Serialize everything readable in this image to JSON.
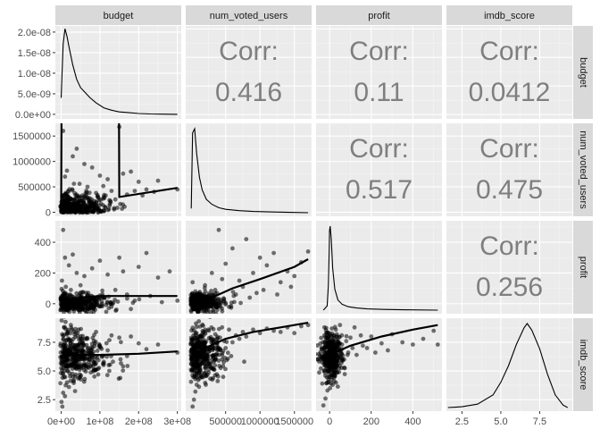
{
  "chart_data": {
    "type": "scatter",
    "variables": [
      "budget",
      "num_voted_users",
      "profit",
      "imdb_score"
    ],
    "corr_label": "Corr:",
    "correlations": {
      "budget|num_voted_users": "0.416",
      "budget|profit": "0.11",
      "budget|imdb_score": "0.0412",
      "num_voted_users|profit": "0.517",
      "num_voted_users|imdb_score": "0.475",
      "profit|imdb_score": "0.256"
    },
    "x_ticks": {
      "budget": [
        "0e+00",
        "1e+08",
        "2e+08",
        "3e+08"
      ],
      "num_voted_users": [
        "500000",
        "1000000",
        "1500000"
      ],
      "profit": [
        "0",
        "200",
        "400"
      ],
      "imdb_score": [
        "2.5",
        "5.0",
        "7.5"
      ]
    },
    "y_ticks": {
      "budget_density": [
        "0.0e+00",
        "5.0e-09",
        "1.0e-08",
        "1.5e-08",
        "2.0e-08"
      ],
      "num_voted_users": [
        "0",
        "500000",
        "1000000",
        "1500000"
      ],
      "profit": [
        "0",
        "200",
        "400"
      ],
      "imdb_score": [
        "2.5",
        "5.0",
        "7.5"
      ]
    },
    "axis_ranges": {
      "budget": [
        -15000000,
        310000000
      ],
      "num_voted_users": [
        -80000,
        1750000
      ],
      "profit": [
        -65,
        540
      ],
      "imdb_score": [
        1.5,
        9.6
      ],
      "budget_density": [
        -1.1e-09,
        2.15e-08
      ]
    },
    "densities": {
      "budget": [
        [
          0,
          4e-09
        ],
        [
          5000000,
          1.7e-08
        ],
        [
          10000000,
          2.08e-08
        ],
        [
          15000000,
          1.9e-08
        ],
        [
          20000000,
          1.65e-08
        ],
        [
          30000000,
          1.2e-08
        ],
        [
          40000000,
          8.5e-09
        ],
        [
          50000000,
          6.5e-09
        ],
        [
          60000000,
          5.5e-09
        ],
        [
          75000000,
          4e-09
        ],
        [
          90000000,
          2.8e-09
        ],
        [
          110000000,
          1.6e-09
        ],
        [
          130000000,
          1e-09
        ],
        [
          150000000,
          6e-10
        ],
        [
          175000000,
          4e-10
        ],
        [
          200000000,
          2e-10
        ],
        [
          230000000,
          1e-10
        ],
        [
          260000000,
          5e-11
        ],
        [
          300000000,
          0.0
        ]
      ],
      "num_voted_users": [
        [
          0,
          0.05
        ],
        [
          20000,
          0.95
        ],
        [
          50000,
          1.0
        ],
        [
          80000,
          0.7
        ],
        [
          120000,
          0.42
        ],
        [
          160000,
          0.27
        ],
        [
          220000,
          0.16
        ],
        [
          300000,
          0.1
        ],
        [
          400000,
          0.06
        ],
        [
          500000,
          0.04
        ],
        [
          700000,
          0.025
        ],
        [
          900000,
          0.015
        ],
        [
          1200000,
          0.008
        ],
        [
          1500000,
          0.003
        ],
        [
          1700000,
          0.0
        ]
      ],
      "profit": [
        [
          -30,
          0.0
        ],
        [
          -12,
          0.05
        ],
        [
          -6,
          0.3
        ],
        [
          -2,
          0.7
        ],
        [
          0,
          0.95
        ],
        [
          3,
          1.0
        ],
        [
          8,
          0.85
        ],
        [
          15,
          0.5
        ],
        [
          25,
          0.25
        ],
        [
          40,
          0.12
        ],
        [
          60,
          0.07
        ],
        [
          90,
          0.04
        ],
        [
          130,
          0.025
        ],
        [
          180,
          0.015
        ],
        [
          260,
          0.008
        ],
        [
          350,
          0.004
        ],
        [
          520,
          0.0
        ]
      ],
      "imdb_score": [
        [
          1.6,
          0.0
        ],
        [
          2.5,
          0.01
        ],
        [
          3.5,
          0.04
        ],
        [
          4.5,
          0.15
        ],
        [
          5.0,
          0.3
        ],
        [
          5.5,
          0.5
        ],
        [
          6.0,
          0.75
        ],
        [
          6.5,
          0.95
        ],
        [
          6.7,
          1.0
        ],
        [
          7.0,
          0.92
        ],
        [
          7.5,
          0.7
        ],
        [
          8.0,
          0.4
        ],
        [
          8.5,
          0.15
        ],
        [
          9.0,
          0.03
        ],
        [
          9.3,
          0.0
        ]
      ]
    },
    "trend_lines": {
      "num_voted_users~budget": [
        [
          0,
          80000
        ],
        [
          80000000,
          150000000
        ],
        [
          150000000,
          300000
        ],
        [
          300000000,
          480000
        ]
      ],
      "profit~budget": [
        [
          0,
          20
        ],
        [
          50000000,
          40
        ],
        [
          100000000,
          50
        ],
        [
          200000000,
          50
        ],
        [
          300000000,
          50
        ]
      ],
      "imdb_score~budget": [
        [
          0,
          6.6
        ],
        [
          50000000,
          6.4
        ],
        [
          100000000,
          6.4
        ],
        [
          200000000,
          6.5
        ],
        [
          300000000,
          6.7
        ]
      ],
      "profit~num_voted_users": [
        [
          0,
          5
        ],
        [
          300000,
          40
        ],
        [
          600000,
          100
        ],
        [
          1000000,
          160
        ],
        [
          1500000,
          240
        ],
        [
          1700000,
          290
        ]
      ],
      "imdb_score~num_voted_users": [
        [
          0,
          5.9
        ],
        [
          200000,
          7.0
        ],
        [
          500000,
          7.8
        ],
        [
          900000,
          8.4
        ],
        [
          1300000,
          8.8
        ],
        [
          1700000,
          9.2
        ]
      ],
      "imdb_score~profit": [
        [
          -20,
          6.3
        ],
        [
          0,
          6.4
        ],
        [
          100,
          7.2
        ],
        [
          250,
          8.0
        ],
        [
          400,
          8.6
        ],
        [
          520,
          9.0
        ]
      ]
    },
    "scatter_points": {
      "budget_num_voted_users": [
        [
          5000000,
          1600000
        ],
        [
          10000000,
          700000
        ],
        [
          15000000,
          820000
        ],
        [
          30000000,
          1100000
        ],
        [
          40000000,
          1250000
        ],
        [
          60000000,
          950000
        ],
        [
          80000000,
          880000
        ],
        [
          100000000,
          720000
        ],
        [
          120000000,
          650000
        ],
        [
          150000000,
          1680000
        ],
        [
          160000000,
          760000
        ],
        [
          180000000,
          800000
        ],
        [
          200000000,
          600000
        ],
        [
          220000000,
          450000
        ],
        [
          250000000,
          620000
        ],
        [
          300000000,
          450000
        ],
        [
          3000000,
          40000
        ],
        [
          8000000,
          90000
        ],
        [
          12000000,
          150000
        ],
        [
          18000000,
          210000
        ],
        [
          25000000,
          110000
        ],
        [
          35000000,
          260000
        ],
        [
          45000000,
          190000
        ],
        [
          55000000,
          330000
        ],
        [
          70000000,
          270000
        ],
        [
          90000000,
          380000
        ],
        [
          110000000,
          300000
        ],
        [
          130000000,
          420000
        ],
        [
          140000000,
          250000
        ],
        [
          170000000,
          350000
        ],
        [
          190000000,
          420000
        ],
        [
          210000000,
          330000
        ],
        [
          240000000,
          400000
        ],
        [
          2000000,
          20000
        ],
        [
          6000000,
          60000
        ],
        [
          20000000,
          75000
        ],
        [
          28000000,
          45000
        ],
        [
          50000000,
          140000
        ],
        [
          65000000,
          95000
        ],
        [
          85000000,
          170000
        ],
        [
          95000000,
          60000
        ],
        [
          125000000,
          130000
        ]
      ],
      "budget_profit": [
        [
          5000000,
          480
        ],
        [
          10000000,
          300
        ],
        [
          20000000,
          250
        ],
        [
          30000000,
          320
        ],
        [
          40000000,
          200
        ],
        [
          60000000,
          180
        ],
        [
          80000000,
          230
        ],
        [
          100000000,
          280
        ],
        [
          120000000,
          190
        ],
        [
          150000000,
          300
        ],
        [
          160000000,
          210
        ],
        [
          200000000,
          240
        ],
        [
          220000000,
          330
        ],
        [
          250000000,
          170
        ],
        [
          280000000,
          210
        ],
        [
          300000000,
          20
        ],
        [
          3000000,
          -20
        ],
        [
          8000000,
          10
        ],
        [
          15000000,
          60
        ],
        [
          25000000,
          90
        ],
        [
          35000000,
          30
        ],
        [
          50000000,
          120
        ],
        [
          70000000,
          70
        ],
        [
          90000000,
          -10
        ],
        [
          110000000,
          40
        ],
        [
          140000000,
          90
        ],
        [
          170000000,
          60
        ],
        [
          190000000,
          20
        ],
        [
          230000000,
          50
        ],
        [
          260000000,
          10
        ],
        [
          2000000,
          150
        ],
        [
          12000000,
          110
        ],
        [
          45000000,
          -40
        ],
        [
          75000000,
          -30
        ],
        [
          130000000,
          -20
        ],
        [
          180000000,
          -35
        ]
      ],
      "budget_imdb_score": [
        [
          1000000,
          2.3
        ],
        [
          3000000,
          1.9
        ],
        [
          5000000,
          3.1
        ],
        [
          10000000,
          2.8
        ],
        [
          15000000,
          4.0
        ],
        [
          20000000,
          3.6
        ],
        [
          30000000,
          4.5
        ],
        [
          40000000,
          5.2
        ],
        [
          50000000,
          6.0
        ],
        [
          60000000,
          5.5
        ],
        [
          80000000,
          6.5
        ],
        [
          100000000,
          7.2
        ],
        [
          120000000,
          6.8
        ],
        [
          150000000,
          7.9
        ],
        [
          170000000,
          6.3
        ],
        [
          200000000,
          7.4
        ],
        [
          220000000,
          6.9
        ],
        [
          250000000,
          7.3
        ],
        [
          300000000,
          6.6
        ],
        [
          7000000,
          8.8
        ],
        [
          25000000,
          9.0
        ],
        [
          45000000,
          8.6
        ],
        [
          90000000,
          8.4
        ],
        [
          130000000,
          8.1
        ],
        [
          180000000,
          8.0
        ],
        [
          8000000,
          5.0
        ],
        [
          35000000,
          6.2
        ],
        [
          70000000,
          7.0
        ],
        [
          110000000,
          5.8
        ],
        [
          160000000,
          5.4
        ]
      ],
      "num_voted_users_profit": [
        [
          400000,
          480
        ],
        [
          600000,
          360
        ],
        [
          800000,
          420
        ],
        [
          1000000,
          300
        ],
        [
          1100000,
          250
        ],
        [
          1200000,
          330
        ],
        [
          1400000,
          210
        ],
        [
          1600000,
          270
        ],
        [
          1700000,
          340
        ],
        [
          300000,
          200
        ],
        [
          500000,
          260
        ],
        [
          700000,
          150
        ],
        [
          900000,
          200
        ],
        [
          1300000,
          140
        ],
        [
          1500000,
          180
        ],
        [
          200000,
          120
        ],
        [
          350000,
          90
        ],
        [
          450000,
          160
        ],
        [
          650000,
          60
        ],
        [
          750000,
          110
        ],
        [
          850000,
          40
        ],
        [
          950000,
          70
        ],
        [
          1050000,
          90
        ],
        [
          1250000,
          60
        ],
        [
          1450000,
          110
        ],
        [
          100000,
          40
        ],
        [
          150000,
          60
        ],
        [
          250000,
          20
        ],
        [
          50000,
          -10
        ],
        [
          30000,
          -30
        ],
        [
          80000,
          10
        ],
        [
          120000,
          -20
        ],
        [
          180000,
          30
        ],
        [
          60000,
          80
        ],
        [
          20000,
          140
        ],
        [
          380000,
          -40
        ],
        [
          550000,
          -20
        ],
        [
          720000,
          5
        ]
      ],
      "num_voted_users_imdb_score": [
        [
          20000,
          1.9
        ],
        [
          40000,
          2.5
        ],
        [
          60000,
          3.2
        ],
        [
          80000,
          3.8
        ],
        [
          100000,
          4.2
        ],
        [
          150000,
          4.8
        ],
        [
          200000,
          5.3
        ],
        [
          300000,
          6.0
        ],
        [
          400000,
          6.4
        ],
        [
          500000,
          7.0
        ],
        [
          600000,
          7.5
        ],
        [
          700000,
          7.8
        ],
        [
          800000,
          8.0
        ],
        [
          1000000,
          8.3
        ],
        [
          1200000,
          8.5
        ],
        [
          1400000,
          8.8
        ],
        [
          1600000,
          8.9
        ],
        [
          1700000,
          9.0
        ],
        [
          250000,
          8.6
        ],
        [
          350000,
          8.2
        ],
        [
          450000,
          8.8
        ],
        [
          550000,
          8.6
        ],
        [
          650000,
          8.1
        ],
        [
          750000,
          8.4
        ],
        [
          900000,
          8.6
        ],
        [
          1100000,
          8.7
        ],
        [
          1300000,
          8.4
        ],
        [
          1500000,
          8.3
        ],
        [
          120000,
          6.8
        ],
        [
          180000,
          7.2
        ],
        [
          220000,
          7.6
        ],
        [
          280000,
          7.8
        ],
        [
          320000,
          7.0
        ],
        [
          380000,
          7.4
        ],
        [
          420000,
          7.9
        ],
        [
          480000,
          7.6
        ],
        [
          30000,
          5.5
        ],
        [
          50000,
          6.4
        ],
        [
          70000,
          7.0
        ],
        [
          90000,
          7.4
        ]
      ],
      "profit_imdb_score": [
        [
          -30,
          2.0
        ],
        [
          -20,
          2.6
        ],
        [
          -10,
          3.3
        ],
        [
          -5,
          4.0
        ],
        [
          0,
          4.5
        ],
        [
          5,
          5.2
        ],
        [
          10,
          5.8
        ],
        [
          20,
          6.4
        ],
        [
          40,
          6.9
        ],
        [
          60,
          7.3
        ],
        [
          80,
          7.6
        ],
        [
          100,
          7.9
        ],
        [
          150,
          8.1
        ],
        [
          200,
          8.0
        ],
        [
          250,
          7.4
        ],
        [
          300,
          8.2
        ],
        [
          350,
          7.5
        ],
        [
          400,
          7.3
        ],
        [
          450,
          7.8
        ],
        [
          500,
          8.5
        ],
        [
          520,
          7.3
        ],
        [
          -25,
          8.8
        ],
        [
          -15,
          8.3
        ],
        [
          30,
          8.6
        ],
        [
          50,
          9.0
        ],
        [
          120,
          8.8
        ],
        [
          180,
          7.0
        ],
        [
          220,
          6.6
        ],
        [
          280,
          6.8
        ],
        [
          -40,
          6.2
        ],
        [
          15,
          3.8
        ],
        [
          25,
          4.6
        ],
        [
          35,
          5.5
        ],
        [
          70,
          6.0
        ],
        [
          90,
          6.6
        ],
        [
          110,
          7.0
        ],
        [
          130,
          6.4
        ],
        [
          160,
          7.2
        ]
      ]
    }
  }
}
